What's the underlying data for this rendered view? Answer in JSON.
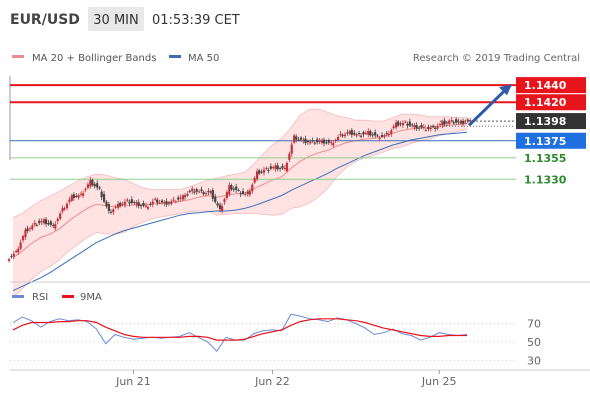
{
  "header": {
    "symbol": "EUR/USD",
    "timeframe": "30 MIN",
    "time": "01:53:39 CET"
  },
  "legend": {
    "bb_label": "MA 20 + Bollinger Bands",
    "ma50_label": "MA 50",
    "credit": "Research © 2019 Trading Central"
  },
  "rsi_legend": {
    "rsi_label": "RSI",
    "ma_label": "9MA"
  },
  "colors": {
    "resistance": "#e8141b",
    "support": "#8fd18f",
    "ma50": "#3a6fb8",
    "current_price": "#333333",
    "bollinger_fill": "#ffe3e3",
    "bollinger_line": "#f08a8a",
    "bull_candle": "#c8313a",
    "bear_candle": "#444444",
    "rsi_line": "#6a8ad8",
    "rsi_ma": "#e8141b",
    "arrow": "#2f5aa8"
  },
  "chart_data": [
    {
      "type": "candlestick",
      "title": "EUR/USD 30 MIN",
      "x_labels": [
        "Jun 21",
        "Jun 22",
        "Jun 25"
      ],
      "levels": [
        {
          "label": "1.1440",
          "value": 1.144,
          "kind": "resistance"
        },
        {
          "label": "1.1420",
          "value": 1.142,
          "kind": "resistance"
        },
        {
          "label": "1.1398",
          "value": 1.1398,
          "kind": "current"
        },
        {
          "label": "1.1375",
          "value": 1.1375,
          "kind": "pivot"
        },
        {
          "label": "1.1355",
          "value": 1.1355,
          "kind": "support"
        },
        {
          "label": "1.1330",
          "value": 1.133,
          "kind": "support"
        }
      ],
      "ylim": [
        1.121,
        1.146
      ],
      "price_path": [
        1.1245,
        1.127,
        1.1278,
        1.1282,
        1.1275,
        1.1295,
        1.131,
        1.1312,
        1.1328,
        1.1318,
        1.1292,
        1.13,
        1.1305,
        1.1302,
        1.1298,
        1.1306,
        1.1302,
        1.1305,
        1.131,
        1.1318,
        1.1315,
        1.1315,
        1.1294,
        1.1322,
        1.1316,
        1.1312,
        1.1338,
        1.1342,
        1.1345,
        1.1342,
        1.138,
        1.1375,
        1.1374,
        1.1375,
        1.1372,
        1.1382,
        1.1385,
        1.1382,
        1.1385,
        1.138,
        1.1382,
        1.1395,
        1.1396,
        1.1392,
        1.139,
        1.139,
        1.1396,
        1.1398,
        1.1397,
        1.1398
      ],
      "ma20": [
        1.1238,
        1.1246,
        1.1255,
        1.1262,
        1.1266,
        1.1272,
        1.1281,
        1.1289,
        1.1296,
        1.1301,
        1.1299,
        1.1298,
        1.1299,
        1.13,
        1.13,
        1.1301,
        1.1302,
        1.1303,
        1.1304,
        1.1306,
        1.1309,
        1.1311,
        1.1309,
        1.1311,
        1.1313,
        1.1314,
        1.1319,
        1.1324,
        1.1329,
        1.1333,
        1.1343,
        1.1351,
        1.1357,
        1.1361,
        1.1364,
        1.1369,
        1.1373,
        1.1375,
        1.1377,
        1.1378,
        1.138,
        1.1384,
        1.1387,
        1.1389,
        1.139,
        1.139,
        1.1392,
        1.1393,
        1.1394,
        1.1395
      ],
      "bb_upper": [
        1.1285,
        1.129,
        1.1298,
        1.1305,
        1.131,
        1.1316,
        1.1322,
        1.1328,
        1.1333,
        1.1336,
        1.1335,
        1.1332,
        1.133,
        1.1325,
        1.132,
        1.1318,
        1.1318,
        1.1318,
        1.1318,
        1.1321,
        1.1325,
        1.1329,
        1.1331,
        1.1334,
        1.1336,
        1.1338,
        1.1348,
        1.136,
        1.137,
        1.1378,
        1.139,
        1.1405,
        1.1412,
        1.1412,
        1.1408,
        1.1404,
        1.1402,
        1.1399,
        1.1399,
        1.1398,
        1.1398,
        1.1402,
        1.1406,
        1.1406,
        1.1405,
        1.1403,
        1.1403,
        1.1403,
        1.1402,
        1.1402
      ],
      "bb_lower": [
        1.1192,
        1.1202,
        1.1213,
        1.1222,
        1.1228,
        1.1236,
        1.1246,
        1.1254,
        1.1262,
        1.1268,
        1.1266,
        1.1266,
        1.1268,
        1.1275,
        1.128,
        1.1284,
        1.1286,
        1.1288,
        1.129,
        1.1292,
        1.1293,
        1.1293,
        1.1288,
        1.1289,
        1.129,
        1.129,
        1.129,
        1.1289,
        1.1288,
        1.1289,
        1.1296,
        1.1298,
        1.1302,
        1.131,
        1.132,
        1.1334,
        1.1344,
        1.1351,
        1.1355,
        1.1358,
        1.1362,
        1.1366,
        1.1368,
        1.1372,
        1.1375,
        1.1377,
        1.1381,
        1.1383,
        1.1386,
        1.1388
      ],
      "ma50": [
        1.12,
        1.1205,
        1.121,
        1.1215,
        1.1221,
        1.1228,
        1.1235,
        1.1242,
        1.1249,
        1.1256,
        1.1261,
        1.1266,
        1.127,
        1.1273,
        1.1276,
        1.1279,
        1.1282,
        1.1285,
        1.1288,
        1.129,
        1.1291,
        1.1292,
        1.1293,
        1.1293,
        1.1294,
        1.1296,
        1.1299,
        1.1303,
        1.1307,
        1.1311,
        1.1317,
        1.1322,
        1.1327,
        1.1332,
        1.1337,
        1.1343,
        1.1348,
        1.1353,
        1.1358,
        1.1362,
        1.1366,
        1.137,
        1.1373,
        1.1376,
        1.1378,
        1.138,
        1.1382,
        1.1383,
        1.1384,
        1.1385
      ]
    },
    {
      "type": "line",
      "title": "RSI",
      "series": [
        {
          "name": "RSI",
          "values": [
            71,
            77,
            73,
            66,
            72,
            75,
            73,
            74,
            72,
            64,
            48,
            58,
            55,
            53,
            54,
            55,
            54,
            55,
            56,
            60,
            55,
            50,
            40,
            55,
            52,
            52,
            59,
            62,
            63,
            62,
            80,
            78,
            75,
            74,
            72,
            76,
            74,
            70,
            65,
            58,
            60,
            64,
            59,
            57,
            52,
            55,
            60,
            58,
            57,
            58
          ]
        },
        {
          "name": "9MA",
          "values": [
            63,
            68,
            71,
            71,
            71,
            72,
            72,
            73,
            73,
            71,
            66,
            62,
            58,
            56,
            55,
            55,
            55,
            55,
            55,
            56,
            56,
            55,
            52,
            52,
            52,
            53,
            56,
            59,
            61,
            63,
            68,
            72,
            74,
            75,
            75,
            75,
            74,
            73,
            71,
            68,
            65,
            63,
            61,
            59,
            57,
            56,
            56,
            57,
            57,
            57
          ]
        }
      ],
      "yticks": [
        70,
        50,
        30
      ],
      "ylim": [
        25,
        90
      ]
    }
  ]
}
